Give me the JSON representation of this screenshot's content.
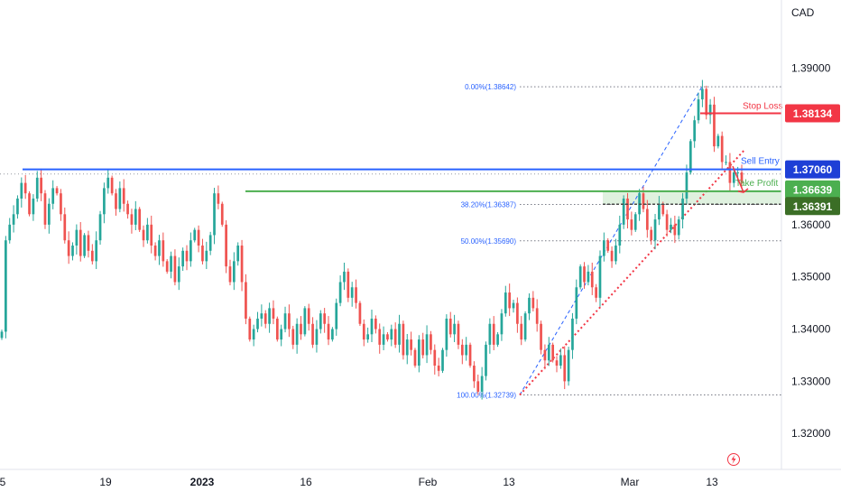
{
  "chart_data": {
    "type": "candlestick",
    "instrument_currency": "CAD",
    "y_range": [
      1.3145,
      1.402
    ],
    "y_ticks": [
      1.32,
      1.33,
      1.34,
      1.35,
      1.36,
      1.39
    ],
    "y_tick_labels": [
      "1.32000",
      "1.33000",
      "1.34000",
      "1.35000",
      "1.36000",
      "1.39000"
    ],
    "x_ticks": [
      "5",
      "19",
      "2023",
      "16",
      "Feb",
      "13",
      "Mar",
      "13"
    ],
    "horizontal_levels": [
      {
        "label": "1.38134",
        "value": 1.38134,
        "annotation": "Stop Loss",
        "color": "#f23645"
      },
      {
        "label": "1.37060",
        "value": 1.3706,
        "annotation": "Sell Entry",
        "color": "#2962ff"
      },
      {
        "label": "1.36639",
        "value": 1.36639,
        "annotation": "Take Profit",
        "color": "#4caf50"
      },
      {
        "label": "1.36391",
        "value": 1.36391,
        "annotation": "",
        "color": "#33691e"
      }
    ],
    "fibonacci": [
      {
        "label": "0.00%(1.38642)",
        "value": 1.38642
      },
      {
        "label": "38.20%(1.36387)",
        "value": 1.36387
      },
      {
        "label": "50.00%(1.35690)",
        "value": 1.3569
      },
      {
        "label": "100.00%(1.32739)",
        "value": 1.32739
      }
    ],
    "prices": [
      1.3395,
      1.357,
      1.36,
      1.362,
      1.365,
      1.368,
      1.366,
      1.362,
      1.365,
      1.369,
      1.366,
      1.36,
      1.364,
      1.367,
      1.366,
      1.362,
      1.357,
      1.354,
      1.356,
      1.359,
      1.354,
      1.358,
      1.355,
      1.353,
      1.357,
      1.362,
      1.367,
      1.369,
      1.366,
      1.363,
      1.367,
      1.364,
      1.362,
      1.36,
      1.363,
      1.359,
      1.357,
      1.36,
      1.356,
      1.354,
      1.357,
      1.353,
      1.351,
      1.354,
      1.349,
      1.352,
      1.355,
      1.353,
      1.357,
      1.359,
      1.356,
      1.353,
      1.355,
      1.358,
      1.366,
      1.364,
      1.36,
      1.352,
      1.349,
      1.353,
      1.356,
      1.349,
      1.342,
      1.338,
      1.34,
      1.342,
      1.343,
      1.341,
      1.344,
      1.342,
      1.338,
      1.34,
      1.343,
      1.34,
      1.337,
      1.341,
      1.339,
      1.344,
      1.341,
      1.337,
      1.34,
      1.343,
      1.341,
      1.338,
      1.34,
      1.345,
      1.349,
      1.351,
      1.346,
      1.348,
      1.345,
      1.341,
      1.338,
      1.339,
      1.342,
      1.34,
      1.337,
      1.339,
      1.338,
      1.34,
      1.337,
      1.341,
      1.335,
      1.338,
      1.336,
      1.333,
      1.338,
      1.335,
      1.339,
      1.336,
      1.333,
      1.332,
      1.336,
      1.342,
      1.339,
      1.341,
      1.337,
      1.335,
      1.337,
      1.333,
      1.33,
      1.328,
      1.331,
      1.337,
      1.341,
      1.337,
      1.339,
      1.343,
      1.347,
      1.344,
      1.345,
      1.341,
      1.338,
      1.343,
      1.346,
      1.344,
      1.341,
      1.336,
      1.334,
      1.337,
      1.334,
      1.333,
      1.335,
      1.33,
      1.336,
      1.342,
      1.348,
      1.352,
      1.349,
      1.351,
      1.348,
      1.346,
      1.354,
      1.357,
      1.355,
      1.353,
      1.356,
      1.36,
      1.365,
      1.361,
      1.359,
      1.362,
      1.366,
      1.363,
      1.359,
      1.357,
      1.361,
      1.364,
      1.362,
      1.359,
      1.36,
      1.358,
      1.361,
      1.365,
      1.37,
      1.376,
      1.38,
      1.384,
      1.386,
      1.381,
      1.383,
      1.375,
      1.377,
      1.372,
      1.372,
      1.368,
      1.37,
      1.37,
      1.368
    ]
  }
}
